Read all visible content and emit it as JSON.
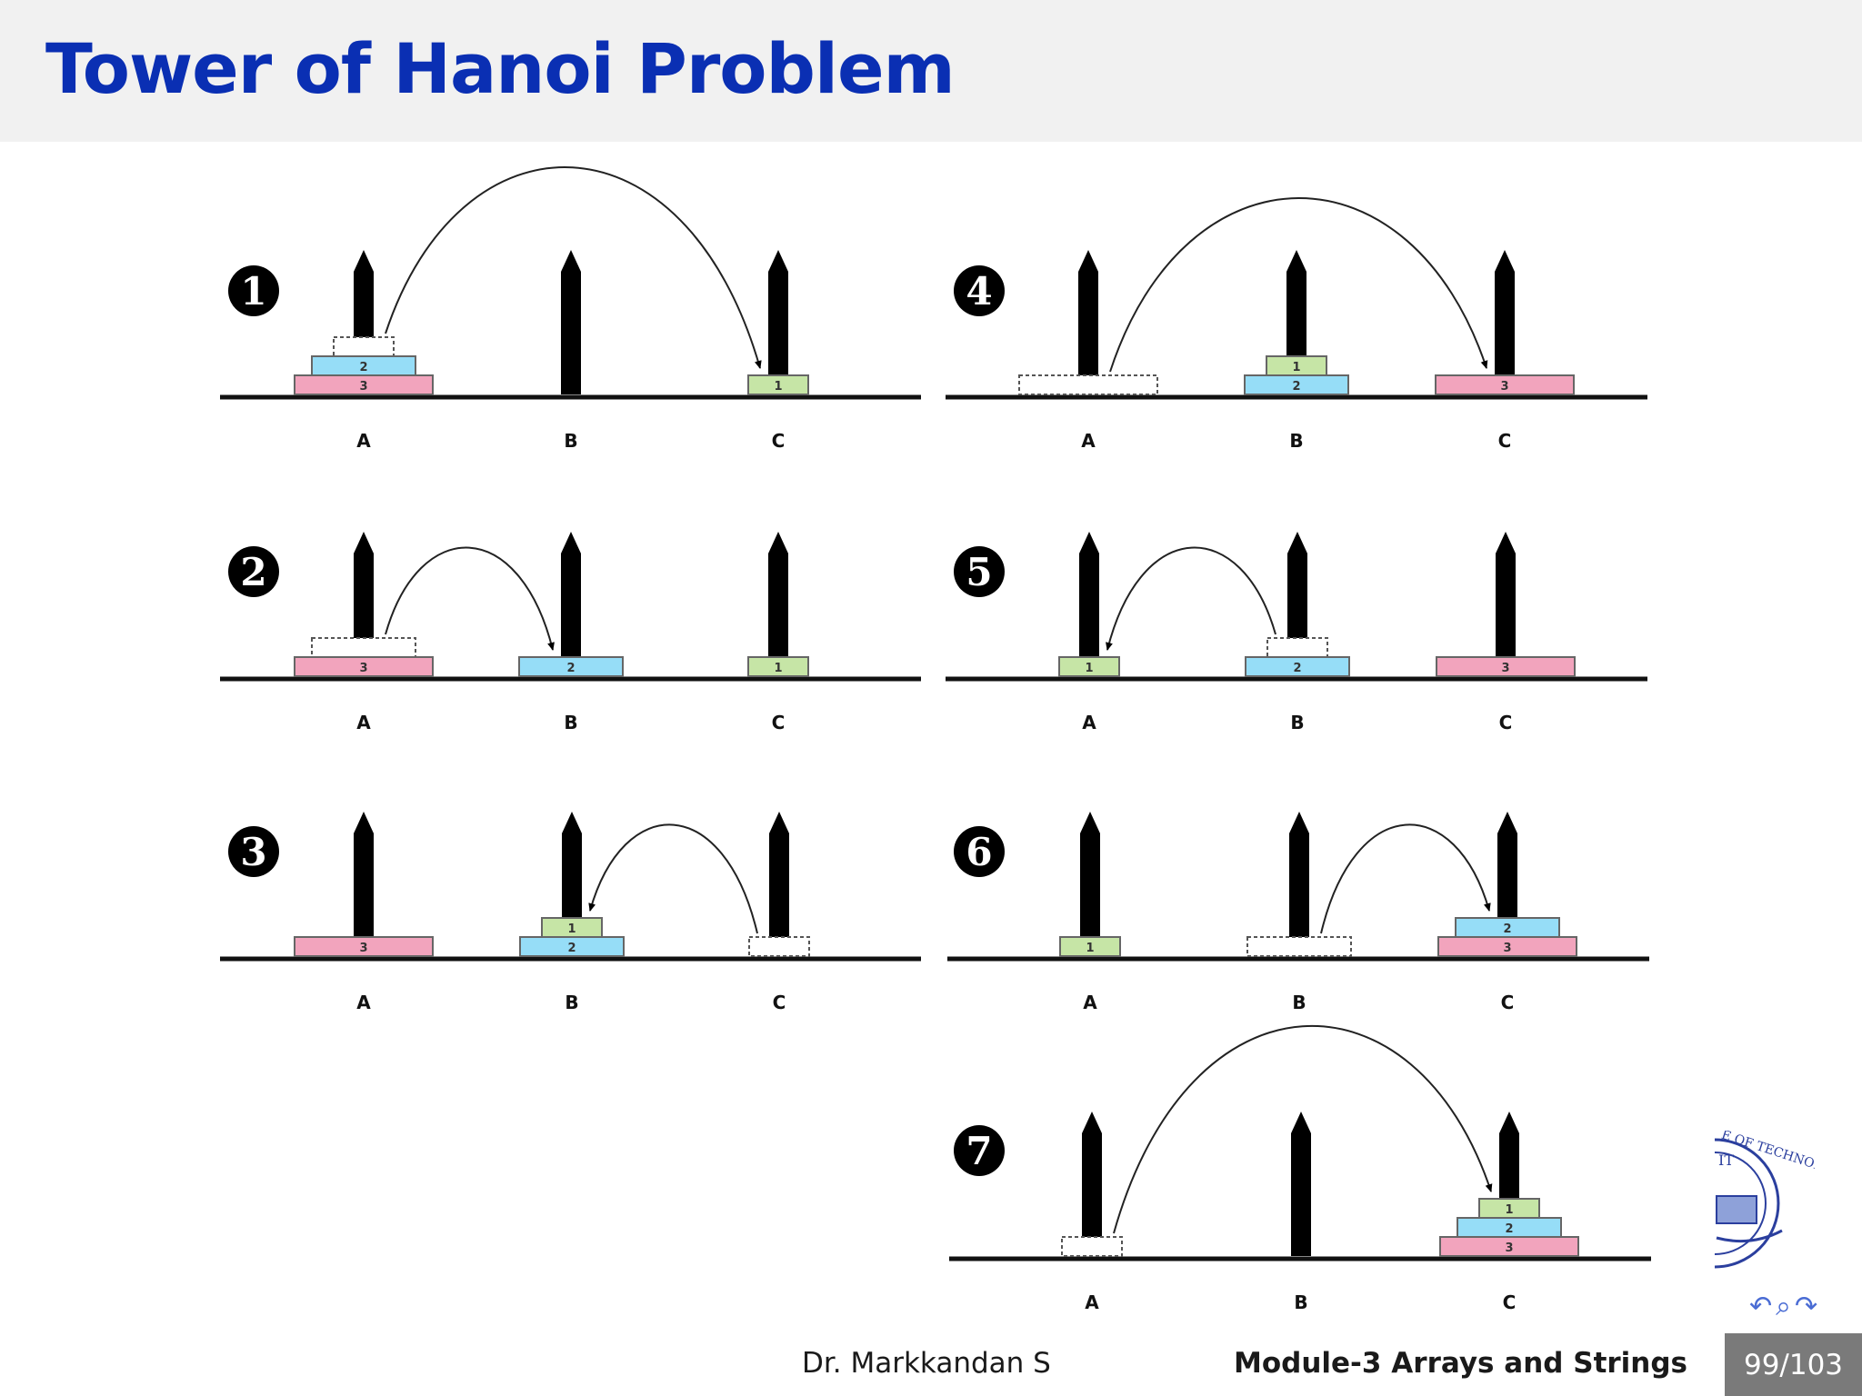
{
  "slide": {
    "title": "Tower of Hanoi Problem",
    "footer": {
      "author": "Dr.  Markkandan S",
      "module": "Module-3  Arrays and Strings",
      "page": "99/103"
    },
    "logo": {
      "text": "E OF TECHNOLOGY",
      "sub": "IT"
    },
    "nav_icons": [
      "undo-icon",
      "search-icon",
      "redo-icon"
    ]
  },
  "diagram": {
    "peg_labels": [
      "A",
      "B",
      "C"
    ],
    "disk_colors": {
      "1": "#c6e5a6",
      "2": "#96ddf7",
      "3": "#f2a4bd"
    },
    "steps": [
      {
        "number": 1,
        "badge": "1",
        "pegs": [
          [
            3,
            2
          ],
          [],
          [
            1
          ]
        ],
        "moved_disk": 1,
        "from": "A",
        "to": "C"
      },
      {
        "number": 2,
        "badge": "2",
        "pegs": [
          [
            3
          ],
          [
            2
          ],
          [
            1
          ]
        ],
        "moved_disk": 2,
        "from": "A",
        "to": "B"
      },
      {
        "number": 3,
        "badge": "3",
        "pegs": [
          [
            3
          ],
          [
            2,
            1
          ],
          []
        ],
        "moved_disk": 1,
        "from": "C",
        "to": "B"
      },
      {
        "number": 4,
        "badge": "4",
        "pegs": [
          [],
          [
            2,
            1
          ],
          [
            3
          ]
        ],
        "moved_disk": 3,
        "from": "A",
        "to": "C"
      },
      {
        "number": 5,
        "badge": "5",
        "pegs": [
          [
            1
          ],
          [
            2
          ],
          [
            3
          ]
        ],
        "moved_disk": 1,
        "from": "B",
        "to": "A"
      },
      {
        "number": 6,
        "badge": "6",
        "pegs": [
          [
            1
          ],
          [],
          [
            3,
            2
          ]
        ],
        "moved_disk": 2,
        "from": "B",
        "to": "C"
      },
      {
        "number": 7,
        "badge": "7",
        "pegs": [
          [],
          [],
          [
            3,
            2,
            1
          ]
        ],
        "moved_disk": 1,
        "from": "A",
        "to": "C"
      }
    ]
  }
}
